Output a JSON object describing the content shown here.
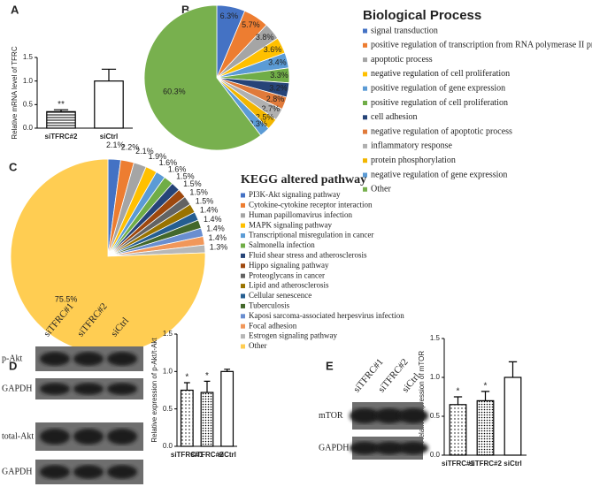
{
  "chart_data": [
    {
      "type": "bar",
      "panel": "A",
      "ylabel": "Relative mRNA level of TFRC",
      "categories": [
        "siTFRC#2",
        "siCtrl"
      ],
      "values": [
        0.35,
        1.0
      ],
      "errors": [
        0.04,
        0.25
      ],
      "value_annotations": [
        "**",
        null
      ],
      "fills": [
        "hlines",
        "white"
      ],
      "color": "#000000",
      "ylim": [
        0,
        1.5
      ],
      "yticks": [
        {
          "value": 0,
          "label": "0.0"
        },
        {
          "value": 0.5,
          "label": "0.5"
        },
        {
          "value": 1,
          "label": "1.0"
        },
        {
          "value": 1.5,
          "label": "1.5"
        }
      ]
    },
    {
      "type": "pie",
      "panel": "B",
      "legend_title": "Biological Process",
      "categories": [
        "signal transduction",
        "positive regulation of transcription from RNA polymerase II promoter",
        "apoptotic process",
        "negative regulation of cell proliferation",
        "positive regulation of gene expression",
        "positive regulation of cell proliferation",
        "cell adhesion",
        "negative regulation of apoptotic process",
        "inflammatory response",
        "protein phosphorylation",
        "negative regulation of gene expression",
        "Other"
      ],
      "values": [
        6.3,
        5.7,
        3.8,
        3.6,
        3.4,
        3.3,
        3.2,
        2.8,
        2.7,
        2.5,
        2.3,
        60.3
      ],
      "value_labels": [
        "6.3%",
        "5.7%",
        "3.8%",
        "3.6%",
        "3.4%",
        "3.3%",
        "3.2%",
        "2.8%",
        "2.7%",
        "2.5%",
        "2.3%",
        "60.3%"
      ],
      "colors": [
        "#4472c4",
        "#ed7d31",
        "#a5a5a5",
        "#ffc000",
        "#5b9bd5",
        "#70ad47",
        "#264478",
        "#e07a3a",
        "#b0b0b0",
        "#f2b600",
        "#5b9bd5",
        "#78b04e"
      ]
    },
    {
      "type": "pie",
      "panel": "C",
      "legend_title": "KEGG altered pathway",
      "categories": [
        "PI3K-Akt signaling pathway",
        "Cytokine-cytokine receptor interaction",
        "Human papillomavirus infection",
        "MAPK signaling pathway",
        "Transcriptional misregulation in cancer",
        "Salmonella infection",
        "Fluid shear stress and atherosclerosis",
        "Hippo signaling pathway",
        "Proteoglycans in cancer",
        "Lipid and atherosclerosis",
        "Cellular senescence",
        "Tuberculosis",
        "Kaposi sarcoma-associated herpesvirus infection",
        "Focal adhesion",
        "Estrogen signaling pathway",
        "Other"
      ],
      "values": [
        2.1,
        2.2,
        2.1,
        1.9,
        1.6,
        1.6,
        1.5,
        1.5,
        1.5,
        1.5,
        1.4,
        1.4,
        1.4,
        1.4,
        1.3,
        75.5
      ],
      "value_labels": [
        "2.1%",
        "2.2%",
        "2.1%",
        "1.9%",
        "1.6%",
        "1.6%",
        "1.5%",
        "1.5%",
        "1.5%",
        "1.5%",
        "1.4%",
        "1.4%",
        "1.4%",
        "1.4%",
        "1.3%",
        "75.5%"
      ],
      "colors": [
        "#4472c4",
        "#ed7d31",
        "#a5a5a5",
        "#ffc000",
        "#5b9bd5",
        "#70ad47",
        "#264478",
        "#9e480e",
        "#636363",
        "#997300",
        "#255e91",
        "#43682b",
        "#698ed0",
        "#f1975a",
        "#b7b7b7",
        "#ffcd52"
      ]
    },
    {
      "type": "bar",
      "panel": "D",
      "ylabel": "Relative expression of p-Akt/t-Akt",
      "categories": [
        "siTFRC#1",
        "siTFRC#2",
        "siCtrl"
      ],
      "values": [
        0.75,
        0.72,
        1.0
      ],
      "errors": [
        0.1,
        0.15,
        0.03
      ],
      "value_annotations": [
        "*",
        "*",
        null
      ],
      "fills": [
        "dots",
        "densedots",
        "white"
      ],
      "color": "#000000",
      "ylim": [
        0,
        1.5
      ],
      "yticks": [
        {
          "value": 0,
          "label": "0.0"
        },
        {
          "value": 0.5,
          "label": "0.5"
        },
        {
          "value": 1,
          "label": "1.0"
        },
        {
          "value": 1.5,
          "label": "1.5"
        }
      ],
      "blot": {
        "lanes": [
          "siTFRC#1",
          "siTFRC#2",
          "siCtrl"
        ],
        "rows": [
          "p-Akt",
          "GAPDH",
          "total-Akt",
          "GAPDH"
        ]
      }
    },
    {
      "type": "bar",
      "panel": "E",
      "ylabel": "Relative expression of mTOR",
      "categories": [
        "siTFRC#1",
        "siTFRC#2",
        "siCtrl"
      ],
      "values": [
        0.65,
        0.7,
        1.0
      ],
      "errors": [
        0.1,
        0.12,
        0.2
      ],
      "value_annotations": [
        "*",
        "*",
        null
      ],
      "fills": [
        "dots",
        "densedots",
        "white"
      ],
      "color": "#000000",
      "ylim": [
        0,
        1.5
      ],
      "yticks": [
        {
          "value": 0,
          "label": "0.0"
        },
        {
          "value": 0.5,
          "label": "0.5"
        },
        {
          "value": 1,
          "label": "1.0"
        },
        {
          "value": 1.5,
          "label": "1.5"
        }
      ],
      "blot": {
        "lanes": [
          "siTFRC#1",
          "siTFRC#2",
          "siCtrl"
        ],
        "rows": [
          "mTOR",
          "GAPDH"
        ]
      }
    }
  ]
}
